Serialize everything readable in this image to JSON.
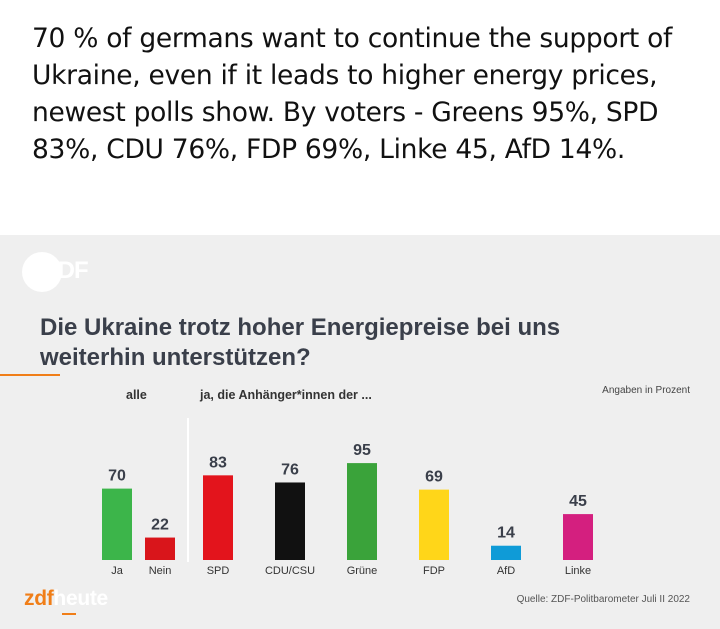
{
  "caption": "70 % of germans want to continue the support of Ukraine, even if it leads to higher energy prices, newest polls show. By voters - Greens 95%, SPD 83%, CDU 76%, FDP 69%, Linke 45, AfD 14%.",
  "watermark": "ZDF",
  "chart_data": {
    "type": "bar",
    "title": "Die Ukraine trotz hoher Energiepreise bei uns weiterhin unterstützen?",
    "group_labels": [
      "alle",
      "ja, die Anhänger*innen der ..."
    ],
    "units_note": "Angaben in Prozent",
    "categories": [
      "Ja",
      "Nein",
      "SPD",
      "CDU/CSU",
      "Grüne",
      "FDP",
      "AfD",
      "Linke"
    ],
    "values": [
      70,
      22,
      83,
      76,
      95,
      69,
      14,
      45
    ],
    "colors": [
      "#3cb54a",
      "#d9151b",
      "#e3141c",
      "#111111",
      "#3aa33a",
      "#ffd619",
      "#0f9bd7",
      "#d41f7f"
    ],
    "ylim": [
      0,
      100
    ],
    "xlabel": "",
    "ylabel": "",
    "source": "Quelle: ZDF-Politbarometer Juli II 2022"
  },
  "brand": {
    "main": "zdf",
    "sub": "heute",
    "accent": "#f07e18"
  }
}
